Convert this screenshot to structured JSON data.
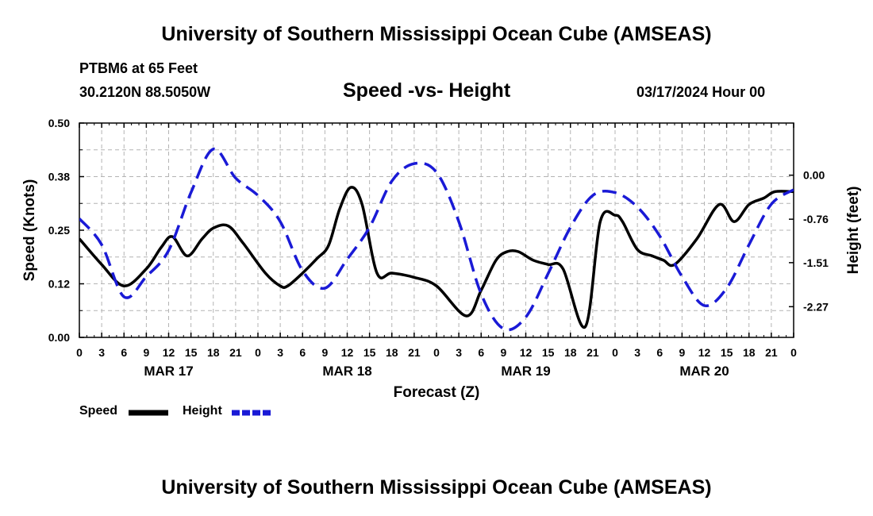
{
  "page": {
    "title": "University of Southern Mississippi Ocean Cube (AMSEAS)",
    "footer_title": "University of Southern Mississippi Ocean Cube (AMSEAS)",
    "station": "PTBM6 at 65 Feet",
    "coords": "30.2120N  88.5050W",
    "chart_title": "Speed -vs- Height",
    "date": "03/17/2024 Hour 00"
  },
  "legend": {
    "speed_label": "Speed",
    "height_label": "Height"
  },
  "colors": {
    "speed": "#000000",
    "height": "#1a1ad6",
    "grid": "#b4b4b4"
  },
  "chart_data": {
    "type": "line",
    "title": "Speed -vs- Height",
    "xlabel": "Forecast (Z)",
    "ylabel": "Speed (Knots)",
    "y2label": "Height (feet)",
    "x_unit": "hours since 03/17/2024 00Z",
    "xlim": [
      0,
      96
    ],
    "ylim": [
      0,
      0.5
    ],
    "y2lim": [
      -2.8,
      0.9
    ],
    "x_ticks": [
      0,
      3,
      6,
      9,
      12,
      15,
      18,
      21,
      24,
      27,
      30,
      33,
      36,
      39,
      42,
      45,
      48,
      51,
      54,
      57,
      60,
      63,
      66,
      69,
      72,
      75,
      78,
      81,
      84,
      87,
      90,
      93,
      96
    ],
    "x_tick_labels": [
      "0",
      "3",
      "6",
      "9",
      "12",
      "15",
      "18",
      "21",
      "0",
      "3",
      "6",
      "9",
      "12",
      "15",
      "18",
      "21",
      "0",
      "3",
      "6",
      "9",
      "12",
      "15",
      "18",
      "21",
      "0",
      "3",
      "6",
      "9",
      "12",
      "15",
      "18",
      "21",
      "0"
    ],
    "date_labels": [
      {
        "x": 12,
        "label": "MAR 17"
      },
      {
        "x": 36,
        "label": "MAR 18"
      },
      {
        "x": 60,
        "label": "MAR 19"
      },
      {
        "x": 84,
        "label": "MAR 20"
      }
    ],
    "y_ticks": [
      0.0,
      0.125,
      0.25,
      0.375,
      0.5
    ],
    "y_tick_labels": [
      "0.00",
      "0.12",
      "0.25",
      "0.38",
      "0.50"
    ],
    "y2_ticks": [
      0.0,
      -0.76,
      -1.51,
      -2.27
    ],
    "y2_tick_labels": [
      "0.00",
      "-0.76",
      "-1.51",
      "-2.27"
    ],
    "series": [
      {
        "name": "Speed",
        "axis": "left",
        "style": "solid",
        "x": [
          0,
          3,
          6,
          9,
          11,
          12.5,
          14.5,
          16.5,
          18,
          20,
          22,
          25,
          27,
          28,
          30,
          32,
          33.5,
          35,
          36.5,
          38,
          40,
          42,
          45,
          48,
          52,
          54,
          56,
          57.5,
          59,
          61,
          63,
          65,
          68,
          70,
          72,
          73,
          75,
          77,
          78.5,
          80,
          83,
          86,
          88,
          90,
          92,
          93.5,
          96
        ],
        "values": [
          0.23,
          0.17,
          0.12,
          0.16,
          0.21,
          0.235,
          0.19,
          0.23,
          0.255,
          0.26,
          0.22,
          0.15,
          0.12,
          0.12,
          0.15,
          0.185,
          0.215,
          0.3,
          0.35,
          0.31,
          0.15,
          0.15,
          0.14,
          0.12,
          0.05,
          0.11,
          0.18,
          0.2,
          0.2,
          0.18,
          0.17,
          0.16,
          0.025,
          0.27,
          0.285,
          0.27,
          0.205,
          0.19,
          0.18,
          0.17,
          0.23,
          0.31,
          0.27,
          0.31,
          0.325,
          0.34,
          0.34
        ]
      },
      {
        "name": "Height",
        "axis": "right",
        "style": "dashed",
        "x": [
          0,
          3,
          6,
          9,
          12,
          15,
          18,
          21,
          24,
          27,
          30,
          33,
          36,
          39,
          42,
          45,
          48,
          51,
          54,
          57,
          60,
          63,
          66,
          69,
          72,
          75,
          78,
          81,
          84,
          87,
          90,
          93,
          96
        ],
        "values": [
          -0.75,
          -1.2,
          -2.1,
          -1.75,
          -1.3,
          -0.3,
          0.45,
          -0.05,
          -0.35,
          -0.8,
          -1.65,
          -1.95,
          -1.45,
          -0.9,
          -0.1,
          0.2,
          0.05,
          -0.8,
          -2.05,
          -2.65,
          -2.45,
          -1.7,
          -0.9,
          -0.35,
          -0.3,
          -0.55,
          -1.05,
          -1.75,
          -2.25,
          -1.95,
          -1.2,
          -0.5,
          -0.25
        ]
      }
    ]
  }
}
